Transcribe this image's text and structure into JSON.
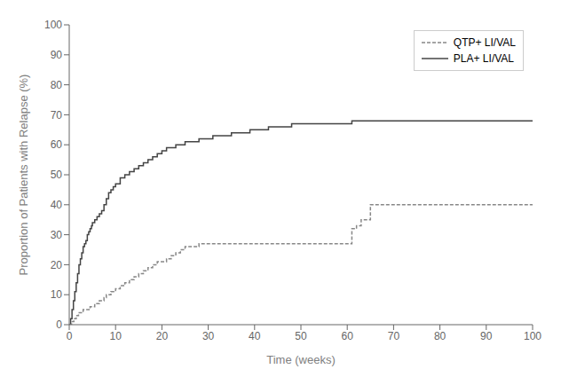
{
  "chart_data": {
    "type": "line",
    "xlabel": "Time (weeks)",
    "ylabel": "Proportion of Patients with Relapse (%)",
    "xlim": [
      0,
      100
    ],
    "ylim": [
      0,
      100
    ],
    "xticks": [
      0,
      10,
      20,
      30,
      40,
      50,
      60,
      70,
      80,
      90,
      100
    ],
    "yticks": [
      0,
      10,
      20,
      30,
      40,
      50,
      60,
      70,
      80,
      90,
      100
    ],
    "grid": false,
    "legend": "upper right",
    "series": [
      {
        "name": "PLA+ LI/VAL",
        "color": "#444444",
        "line_style": "solid",
        "x": [
          0,
          0.3,
          0.6,
          0.9,
          1.2,
          1.5,
          1.8,
          2.1,
          2.4,
          2.7,
          3.0,
          3.3,
          3.6,
          3.9,
          4.2,
          4.5,
          4.8,
          5.0,
          5.5,
          6.0,
          6.5,
          7.0,
          7.5,
          8.0,
          8.5,
          9.0,
          9.5,
          10.0,
          11,
          12,
          13,
          14,
          15,
          16,
          17,
          18,
          19,
          20,
          21,
          22,
          23,
          24,
          25,
          26,
          27,
          28,
          29,
          30,
          31,
          32,
          33,
          34,
          35,
          36,
          37,
          38,
          39,
          40,
          41,
          42,
          43,
          44,
          45,
          46,
          47,
          48,
          49,
          50,
          51,
          52,
          53,
          54,
          55,
          56,
          57,
          58,
          59,
          60,
          61,
          100
        ],
        "values": [
          0,
          2,
          5,
          8,
          11,
          14,
          17,
          20,
          22,
          24,
          26,
          27,
          28,
          30,
          31,
          32,
          33,
          34,
          35,
          36,
          37,
          38,
          40,
          42,
          44,
          45,
          46,
          47,
          49,
          50,
          51,
          52,
          53,
          54,
          55,
          56,
          57,
          58,
          59,
          59,
          60,
          60,
          61,
          61,
          61,
          62,
          62,
          62,
          63,
          63,
          63,
          63,
          64,
          64,
          64,
          64,
          65,
          65,
          65,
          65,
          66,
          66,
          66,
          66,
          66,
          67,
          67,
          67,
          67,
          67,
          67,
          67,
          67,
          67,
          67,
          67,
          67,
          67,
          68,
          68
        ]
      },
      {
        "name": "QTP+ LI/VAL",
        "color": "#888888",
        "line_style": "dashed",
        "x": [
          0,
          0.5,
          1.0,
          1.5,
          2.0,
          2.5,
          3.0,
          3.5,
          4.0,
          4.5,
          5.0,
          5.5,
          6.0,
          6.5,
          7.0,
          7.5,
          8.0,
          8.5,
          9.0,
          9.5,
          10.0,
          11,
          12,
          13,
          14,
          15,
          16,
          17,
          18,
          19,
          20,
          21,
          22,
          23,
          24,
          25,
          26,
          27,
          28,
          29,
          30,
          31,
          32,
          33,
          34,
          35,
          36,
          37,
          38,
          39,
          40,
          41,
          42,
          43,
          44,
          45,
          46,
          47,
          48,
          49,
          50,
          51,
          52,
          53,
          54,
          55,
          56,
          57,
          58,
          59,
          60,
          61,
          62,
          63,
          65,
          100
        ],
        "values": [
          0,
          1,
          2,
          3,
          4,
          4,
          5,
          5,
          5,
          6,
          6,
          7,
          7,
          8,
          8,
          9,
          10,
          10,
          11,
          11,
          12,
          13,
          14,
          15,
          16,
          17,
          18,
          19,
          20,
          21,
          21,
          22,
          23,
          24,
          25,
          26,
          26,
          26,
          27,
          27,
          27,
          27,
          27,
          27,
          27,
          27,
          27,
          27,
          27,
          27,
          27,
          27,
          27,
          27,
          27,
          27,
          27,
          27,
          27,
          27,
          27,
          27,
          27,
          27,
          27,
          27,
          27,
          27,
          27,
          27,
          27,
          32,
          33,
          35,
          40,
          40
        ]
      }
    ]
  }
}
